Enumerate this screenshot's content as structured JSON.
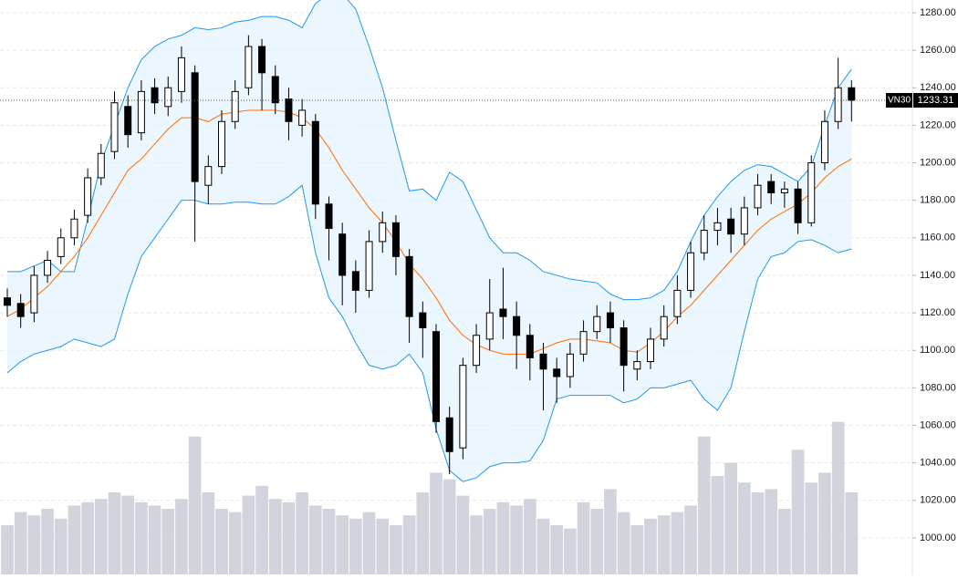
{
  "chart_data": {
    "type": "candlestick",
    "symbol": "VN30",
    "ylim": [
      980.5,
      1286.8
    ],
    "yticks": [
      {
        "value": 1000,
        "label": "1000.00"
      },
      {
        "value": 1020,
        "label": "1020.00"
      },
      {
        "value": 1040,
        "label": "1040.00"
      },
      {
        "value": 1060,
        "label": "1060.00"
      },
      {
        "value": 1080,
        "label": "1080.00"
      },
      {
        "value": 1100,
        "label": "1100.00"
      },
      {
        "value": 1120,
        "label": "1120.00"
      },
      {
        "value": 1140,
        "label": "1140.00"
      },
      {
        "value": 1160,
        "label": "1160.00"
      },
      {
        "value": 1180,
        "label": "1180.00"
      },
      {
        "value": 1200,
        "label": "1200.00"
      },
      {
        "value": 1220,
        "label": "1220.00"
      },
      {
        "value": 1240,
        "label": "1240.00"
      },
      {
        "value": 1260,
        "label": "1260.00"
      },
      {
        "value": 1280,
        "label": "1280.00"
      }
    ],
    "grid": true,
    "up_color": "#ffffff",
    "down_color": "#000000",
    "wick_color": "#000000",
    "open": [
      1128,
      1125,
      1120,
      1140,
      1150,
      1160,
      1172,
      1192,
      1206,
      1230,
      1216,
      1240,
      1230,
      1238,
      1248,
      1188,
      1198,
      1222,
      1240,
      1262,
      1246,
      1234,
      1220,
      1222,
      1178,
      1162,
      1142,
      1132,
      1158,
      1168,
      1150,
      1120,
      1110,
      1064,
      1048,
      1092,
      1106,
      1122,
      1118,
      1108,
      1098,
      1090,
      1086,
      1098,
      1110,
      1120,
      1112,
      1090,
      1094,
      1106,
      1118,
      1132,
      1152,
      1164,
      1170,
      1162,
      1176,
      1190,
      1184,
      1186,
      1168,
      1200,
      1222,
      1240
    ],
    "high": [
      1133,
      1130,
      1145,
      1153,
      1165,
      1175,
      1197,
      1210,
      1238,
      1236,
      1244,
      1245,
      1246,
      1262,
      1252,
      1204,
      1228,
      1244,
      1268,
      1266,
      1252,
      1240,
      1234,
      1226,
      1182,
      1168,
      1148,
      1164,
      1174,
      1172,
      1154,
      1126,
      1114,
      1070,
      1096,
      1114,
      1138,
      1144,
      1126,
      1114,
      1104,
      1096,
      1104,
      1116,
      1124,
      1126,
      1116,
      1100,
      1112,
      1124,
      1140,
      1158,
      1172,
      1176,
      1176,
      1182,
      1194,
      1194,
      1190,
      1190,
      1204,
      1228,
      1256,
      1244
    ],
    "low": [
      1118,
      1112,
      1115,
      1136,
      1146,
      1156,
      1168,
      1188,
      1202,
      1208,
      1212,
      1226,
      1225,
      1232,
      1158,
      1178,
      1194,
      1218,
      1236,
      1228,
      1226,
      1212,
      1214,
      1170,
      1148,
      1124,
      1120,
      1128,
      1152,
      1140,
      1104,
      1096,
      1056,
      1034,
      1042,
      1088,
      1100,
      1106,
      1090,
      1084,
      1068,
      1072,
      1080,
      1094,
      1106,
      1104,
      1078,
      1084,
      1090,
      1102,
      1114,
      1128,
      1148,
      1156,
      1152,
      1156,
      1172,
      1178,
      1176,
      1162,
      1166,
      1196,
      1218,
      1222
    ],
    "close": [
      1124,
      1118,
      1140,
      1148,
      1160,
      1170,
      1192,
      1205,
      1232,
      1215,
      1238,
      1232,
      1240,
      1256,
      1190,
      1198,
      1222,
      1238,
      1262,
      1248,
      1232,
      1222,
      1228,
      1178,
      1165,
      1140,
      1132,
      1158,
      1168,
      1150,
      1118,
      1112,
      1062,
      1046,
      1092,
      1108,
      1120,
      1118,
      1108,
      1096,
      1090,
      1086,
      1098,
      1110,
      1118,
      1112,
      1092,
      1094,
      1106,
      1118,
      1132,
      1152,
      1164,
      1168,
      1162,
      1176,
      1188,
      1184,
      1186,
      1168,
      1200,
      1222,
      1240,
      1233.31
    ],
    "bollinger": {
      "upper_color": "#2196f3",
      "middle_color": "#ff6d00",
      "fill_color": "#e3f2fd",
      "upper": [
        1142,
        1142,
        1145,
        1148,
        1142,
        1142,
        1170,
        1200,
        1220,
        1240,
        1255,
        1262,
        1266,
        1268,
        1272,
        1271,
        1272,
        1275,
        1276,
        1278,
        1278,
        1276,
        1272,
        1285,
        1290,
        1290,
        1282,
        1262,
        1240,
        1212,
        1185,
        1186,
        1180,
        1195,
        1190,
        1175,
        1160,
        1152,
        1152,
        1148,
        1142,
        1140,
        1138,
        1137,
        1136,
        1130,
        1127,
        1127,
        1128,
        1132,
        1142,
        1158,
        1172,
        1182,
        1190,
        1196,
        1199,
        1198,
        1194,
        1190,
        1198,
        1220,
        1240,
        1250
      ],
      "middle": [
        1118,
        1122,
        1128,
        1134,
        1142,
        1150,
        1160,
        1172,
        1184,
        1196,
        1202,
        1210,
        1218,
        1224,
        1224,
        1222,
        1226,
        1227,
        1228,
        1228,
        1228,
        1227,
        1224,
        1218,
        1208,
        1196,
        1186,
        1176,
        1168,
        1158,
        1146,
        1138,
        1128,
        1116,
        1108,
        1103,
        1100,
        1098,
        1098,
        1098,
        1101,
        1104,
        1106,
        1106,
        1105,
        1104,
        1100,
        1099,
        1104,
        1110,
        1118,
        1124,
        1132,
        1140,
        1148,
        1156,
        1164,
        1170,
        1174,
        1178,
        1184,
        1192,
        1198,
        1202
      ],
      "lower": [
        1088,
        1094,
        1098,
        1100,
        1102,
        1106,
        1104,
        1102,
        1106,
        1130,
        1150,
        1160,
        1170,
        1180,
        1180,
        1178,
        1178,
        1179,
        1179,
        1178,
        1178,
        1182,
        1188,
        1152,
        1128,
        1118,
        1104,
        1092,
        1090,
        1092,
        1098,
        1088,
        1058,
        1036,
        1030,
        1032,
        1038,
        1040,
        1040,
        1041,
        1052,
        1074,
        1076,
        1076,
        1076,
        1076,
        1072,
        1074,
        1080,
        1080,
        1082,
        1084,
        1074,
        1068,
        1080,
        1110,
        1138,
        1150,
        1152,
        1158,
        1159,
        1156,
        1152,
        1154
      ]
    },
    "volume": {
      "color": "#d1d4dc",
      "ylim": [
        0,
        100
      ],
      "values": [
        30,
        38,
        36,
        40,
        34,
        42,
        44,
        46,
        50,
        48,
        44,
        42,
        40,
        46,
        84,
        50,
        40,
        38,
        48,
        54,
        46,
        44,
        50,
        42,
        40,
        36,
        34,
        38,
        34,
        30,
        36,
        50,
        62,
        58,
        48,
        36,
        40,
        44,
        42,
        46,
        34,
        30,
        28,
        44,
        40,
        52,
        38,
        30,
        34,
        36,
        38,
        42,
        84,
        60,
        68,
        56,
        50,
        52,
        40,
        76,
        56,
        62,
        93,
        50
      ]
    }
  }
}
